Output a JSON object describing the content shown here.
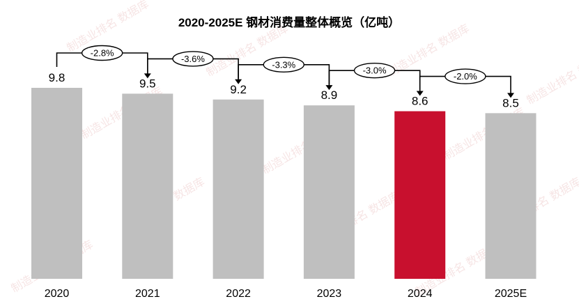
{
  "chart_data": {
    "type": "bar",
    "title": "2020-2025E 钢材消费量整体概览（亿吨）",
    "categories": [
      "2020",
      "2021",
      "2022",
      "2023",
      "2024",
      "2025E"
    ],
    "values": [
      9.8,
      9.5,
      9.2,
      8.9,
      8.6,
      8.5
    ],
    "value_labels": [
      "9.8",
      "9.5",
      "9.2",
      "8.9",
      "8.6",
      "8.5"
    ],
    "changes": [
      "-2.8%",
      "-3.6%",
      "-3.3%",
      "-3.0%",
      "-2.0%"
    ],
    "highlight_index": 4,
    "ylim": [
      0,
      9.8
    ],
    "grid": false,
    "colors": {
      "bar": "#bfbfbf",
      "highlight": "#c8102e",
      "arrow": "#000000"
    }
  },
  "watermark": {
    "text": "制造业排名 数据库"
  }
}
